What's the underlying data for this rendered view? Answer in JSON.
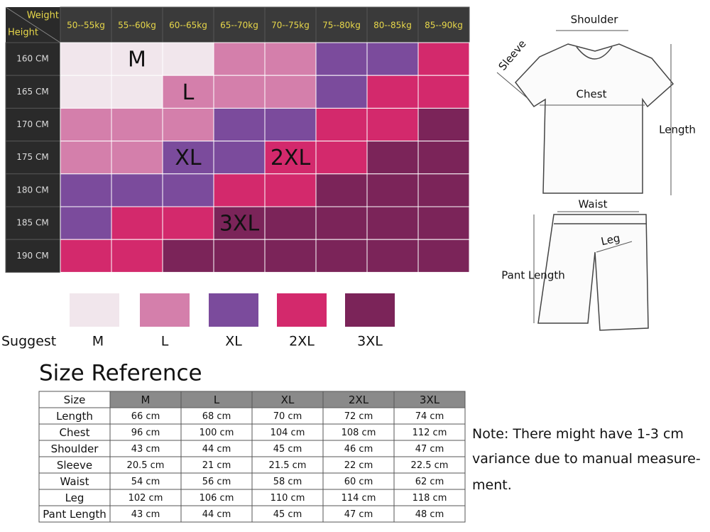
{
  "grid": {
    "corner_weight": "Weight",
    "corner_height": "Height",
    "weights": [
      "50--55kg",
      "55--60kg",
      "60--65kg",
      "65--70kg",
      "70--75kg",
      "75--80kg",
      "80--85kg",
      "85--90kg"
    ],
    "heights": [
      "160 CM",
      "165 CM",
      "170 CM",
      "175 CM",
      "180 CM",
      "185 CM",
      "190 CM"
    ],
    "rows": [
      [
        "M",
        "M",
        "M",
        "L",
        "L",
        "XL",
        "XL",
        "2XL"
      ],
      [
        "M",
        "M",
        "L",
        "L",
        "L",
        "XL",
        "2XL",
        "2XL"
      ],
      [
        "L",
        "L",
        "L",
        "XL",
        "XL",
        "2XL",
        "2XL",
        "3XL"
      ],
      [
        "L",
        "L",
        "XL",
        "XL",
        "2XL",
        "2XL",
        "3XL",
        "3XL"
      ],
      [
        "XL",
        "XL",
        "XL",
        "2XL",
        "2XL",
        "3XL",
        "3XL",
        "3XL"
      ],
      [
        "XL",
        "2XL",
        "2XL",
        "3XL",
        "3XL",
        "3XL",
        "3XL",
        "3XL"
      ],
      [
        "2XL",
        "2XL",
        "3XL",
        "3XL",
        "3XL",
        "3XL",
        "3XL",
        "3XL"
      ]
    ]
  },
  "legend": {
    "label": "Suggest",
    "sizes": [
      {
        "name": "M",
        "color": "#f1e6ec"
      },
      {
        "name": "L",
        "color": "#d47fab"
      },
      {
        "name": "XL",
        "color": "#7b4b9c"
      },
      {
        "name": "2XL",
        "color": "#d3296c"
      },
      {
        "name": "3XL",
        "color": "#7b2459"
      }
    ]
  },
  "diagram": {
    "shoulder": "Shoulder",
    "sleeve": "Sleeve",
    "chest": "Chest",
    "length": "Length",
    "waist": "Waist",
    "leg": "Leg",
    "pant_length": "Pant Length"
  },
  "size_reference": {
    "title": "Size Reference",
    "header": [
      "Size",
      "M",
      "L",
      "XL",
      "2XL",
      "3XL"
    ],
    "rows": [
      [
        "Length",
        "66 cm",
        "68 cm",
        "70 cm",
        "72 cm",
        "74 cm"
      ],
      [
        "Chest",
        "96 cm",
        "100 cm",
        "104 cm",
        "108 cm",
        "112 cm"
      ],
      [
        "Shoulder",
        "43 cm",
        "44 cm",
        "45 cm",
        "46 cm",
        "47 cm"
      ],
      [
        "Sleeve",
        "20.5 cm",
        "21 cm",
        "21.5 cm",
        "22 cm",
        "22.5 cm"
      ],
      [
        "Waist",
        "54 cm",
        "56 cm",
        "58 cm",
        "60 cm",
        "62 cm"
      ],
      [
        "Leg",
        "102 cm",
        "106 cm",
        "110 cm",
        "114 cm",
        "118 cm"
      ],
      [
        "Pant Length",
        "43 cm",
        "44 cm",
        "45 cm",
        "47 cm",
        "48 cm"
      ]
    ]
  },
  "note": [
    "Note: There might have 1-3 cm",
    "variance due to manual measure-",
    "ment."
  ]
}
